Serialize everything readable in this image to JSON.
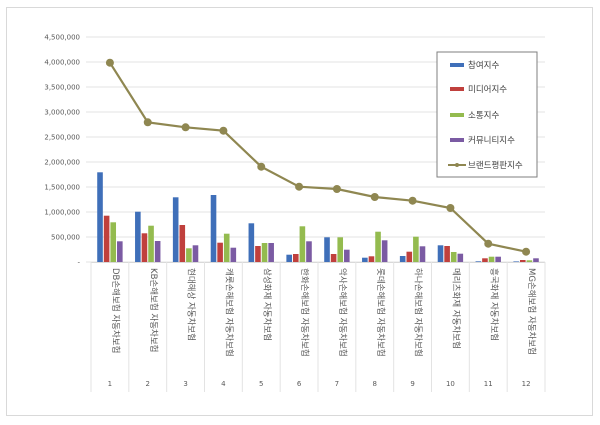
{
  "chart_data": {
    "type": "bar",
    "title": "",
    "xlabel": "",
    "ylabel": "",
    "ylim": [
      0,
      4500000
    ],
    "y_ticks": [
      "-",
      "500,000",
      "1,000,000",
      "1,500,000",
      "2,000,000",
      "2,500,000",
      "3,000,000",
      "3,500,000",
      "4,000,000",
      "4,500,000"
    ],
    "grid": true,
    "legend_position": "upper-right-inside",
    "categories": [
      "DB손해보험 자동차보험",
      "KB손해보험 자동차보험",
      "현대해상 자동차보험",
      "캐롯손해보험 자동차보험",
      "삼성화재 자동차보험",
      "한화손해보험 자동차보험",
      "악사손해보험 자동차보험",
      "롯데손해보험 자동차보험",
      "하나손해보험 자동차보험",
      "메리츠화재 자동차보험",
      "흥국화재 자동차보험",
      "MG손해보험 자동차보험"
    ],
    "category_index": [
      "1",
      "2",
      "3",
      "4",
      "5",
      "6",
      "7",
      "8",
      "9",
      "10",
      "11",
      "12"
    ],
    "series": [
      {
        "name": "참여지수",
        "type": "bar",
        "color": "#3f6fb9",
        "values": [
          1794000,
          1006000,
          1294000,
          1340000,
          774000,
          146000,
          494000,
          86000,
          120000,
          334000,
          14000,
          6000
        ]
      },
      {
        "name": "미디어지수",
        "type": "bar",
        "color": "#c0403d",
        "values": [
          926000,
          574000,
          740000,
          386000,
          320000,
          160000,
          160000,
          114000,
          206000,
          320000,
          74000,
          40000
        ]
      },
      {
        "name": "소통지수",
        "type": "bar",
        "color": "#94bb4f",
        "values": [
          794000,
          726000,
          274000,
          566000,
          380000,
          714000,
          494000,
          606000,
          506000,
          200000,
          106000,
          34000
        ]
      },
      {
        "name": "커뮤니티지수",
        "type": "bar",
        "color": "#7b5ba3",
        "values": [
          414000,
          420000,
          334000,
          286000,
          380000,
          414000,
          246000,
          434000,
          314000,
          166000,
          106000,
          74000
        ]
      },
      {
        "name": "브랜드평판지수",
        "type": "line",
        "color": "#8f8751",
        "values": [
          3986000,
          2794000,
          2694000,
          2626000,
          1906000,
          1506000,
          1460000,
          1300000,
          1226000,
          1080000,
          366000,
          206000
        ]
      }
    ]
  }
}
